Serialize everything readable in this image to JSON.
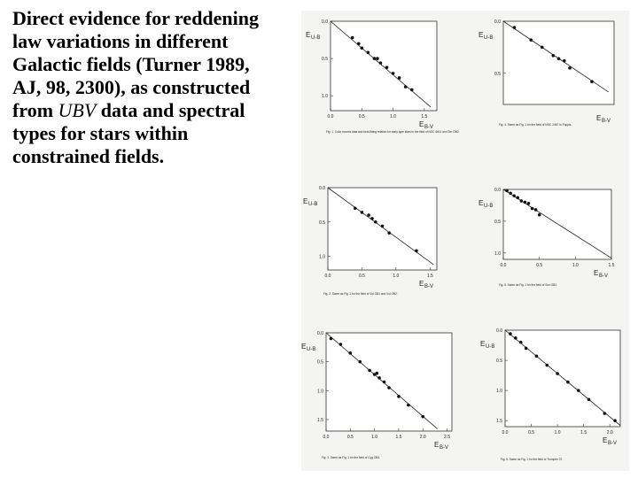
{
  "slide_text": {
    "before": "Direct evidence for reddening law variations in different Galactic fields (Turner 1989, AJ, 98, 2300), as constructed from ",
    "italic": "UBV",
    "after": " data and spectral types for stars within constrained fields."
  },
  "chart_data": [
    {
      "type": "scatter",
      "caption": "Fig. 1. Color excess data and best-fitting relation for early-type stars in the field of NGC 6611 and Ser OB2.",
      "xlabel": {
        "symbol": "E",
        "sub": "B-V"
      },
      "ylabel": {
        "symbol": "E",
        "sub": "U-B"
      },
      "xlim": [
        0,
        1.7
      ],
      "ylim": [
        0,
        1.2
      ],
      "xticks": [
        {
          "value": 0,
          "label": "0.0"
        },
        0.5,
        {
          "value": 1,
          "label": "1.0"
        },
        1.5
      ],
      "yticks": [
        {
          "value": 0,
          "label": "0.0"
        },
        0.5,
        {
          "value": 1,
          "label": "1.0"
        }
      ],
      "x": [
        0.35,
        0.45,
        0.5,
        0.6,
        0.7,
        0.8,
        0.9,
        1.0,
        1.1,
        1.2,
        1.3,
        0.75
      ],
      "y": [
        0.22,
        0.3,
        0.36,
        0.42,
        0.5,
        0.56,
        0.62,
        0.7,
        0.76,
        0.88,
        0.92,
        0.5
      ],
      "fit_x": [
        0,
        1.6
      ],
      "fit_y": [
        0,
        1.15
      ]
    },
    {
      "type": "scatter",
      "caption": "Fig. 4. Same as Fig. 1 for the field of NGC 2467 in Puppis.",
      "xlabel": {
        "symbol": "E",
        "sub": "B-V"
      },
      "ylabel": {
        "symbol": "E",
        "sub": "U-B"
      },
      "xlim": [
        0,
        1.0
      ],
      "ylim": [
        0,
        0.8
      ],
      "xticks": [],
      "yticks": [
        {
          "value": 0,
          "label": "0.0"
        },
        0.5
      ],
      "x": [
        0.1,
        0.25,
        0.35,
        0.45,
        0.55,
        0.6,
        0.8,
        0.5
      ],
      "y": [
        0.06,
        0.18,
        0.25,
        0.33,
        0.38,
        0.45,
        0.58,
        0.36
      ],
      "fit_x": [
        0,
        0.95
      ],
      "fit_y": [
        0,
        0.68
      ]
    },
    {
      "type": "scatter",
      "caption": "Fig. 2. Same as Fig. 1 for the field of Vul OB1 and Vul OB2.",
      "xlabel": {
        "symbol": "E",
        "sub": "B-V"
      },
      "ylabel": {
        "symbol": "E",
        "sub": "U-B"
      },
      "xlim": [
        0,
        1.6
      ],
      "ylim": [
        0,
        1.2
      ],
      "xticks": [
        {
          "value": 0,
          "label": "0.0"
        },
        0.5,
        {
          "value": 1,
          "label": "1.0"
        },
        1.5
      ],
      "yticks": [
        {
          "value": 0,
          "label": "0.0"
        },
        0.5,
        {
          "value": 1,
          "label": "1.0"
        }
      ],
      "x": [
        0.4,
        0.5,
        0.6,
        0.7,
        0.8,
        0.9,
        1.3,
        0.65
      ],
      "y": [
        0.3,
        0.36,
        0.4,
        0.5,
        0.56,
        0.66,
        0.92,
        0.45
      ],
      "fit_x": [
        0,
        1.55
      ],
      "fit_y": [
        0,
        1.12
      ]
    },
    {
      "type": "scatter",
      "caption": "Fig. 5. Same as Fig. 1 for the field of Sco OB2.",
      "xlabel": {
        "symbol": "E",
        "sub": "B-V"
      },
      "ylabel": {
        "symbol": "E",
        "sub": "U-B"
      },
      "xlim": [
        0,
        1.5
      ],
      "ylim": [
        0,
        1.1
      ],
      "xticks": [
        {
          "value": 0,
          "label": "0.0"
        },
        0.5,
        {
          "value": 1,
          "label": "1.0"
        },
        1.5
      ],
      "yticks": [
        {
          "value": 0,
          "label": "0.0"
        },
        0.5,
        {
          "value": 1,
          "label": "1.0"
        }
      ],
      "x": [
        0.05,
        0.1,
        0.15,
        0.2,
        0.25,
        0.3,
        0.4,
        0.45,
        0.5,
        0.35
      ],
      "y": [
        0.02,
        0.06,
        0.1,
        0.13,
        0.18,
        0.2,
        0.3,
        0.32,
        0.4,
        0.22
      ],
      "fit_x": [
        0,
        1.5
      ],
      "fit_y": [
        0,
        1.08
      ]
    },
    {
      "type": "scatter",
      "caption": "Fig. 3. Same as Fig. 1 for the field of Cyg OB3.",
      "xlabel": {
        "symbol": "E",
        "sub": "B-V"
      },
      "ylabel": {
        "symbol": "E",
        "sub": "U-B"
      },
      "xlim": [
        0,
        2.6
      ],
      "ylim": [
        0,
        1.7
      ],
      "xticks": [
        {
          "value": 0,
          "label": "0.0"
        },
        0.5,
        {
          "value": 1,
          "label": "1.0"
        },
        1.5,
        {
          "value": 2,
          "label": "2.0"
        },
        2.5
      ],
      "yticks": [
        {
          "value": 0,
          "label": "0.0"
        },
        0.5,
        {
          "value": 1,
          "label": "1.0"
        },
        1.5
      ],
      "x": [
        0.1,
        0.3,
        0.5,
        0.7,
        0.9,
        1.0,
        1.1,
        1.2,
        1.3,
        1.5,
        1.7,
        2.0,
        1.05
      ],
      "y": [
        0.1,
        0.2,
        0.35,
        0.5,
        0.65,
        0.72,
        0.78,
        0.85,
        0.95,
        1.1,
        1.25,
        1.45,
        0.7
      ],
      "fit_x": [
        0,
        2.3
      ],
      "fit_y": [
        0,
        1.66
      ]
    },
    {
      "type": "scatter",
      "caption": "Fig. 6. Same as Fig. 1 for the field of Trumpler 37.",
      "xlabel": {
        "symbol": "E",
        "sub": "B-V"
      },
      "ylabel": {
        "symbol": "E",
        "sub": "U-B"
      },
      "xlim": [
        0,
        2.2
      ],
      "ylim": [
        0,
        1.6
      ],
      "xticks": [
        {
          "value": 0,
          "label": "0.0"
        },
        0.5,
        {
          "value": 1,
          "label": "1.0"
        },
        1.5,
        {
          "value": 2,
          "label": "2.0"
        }
      ],
      "yticks": [
        {
          "value": 0,
          "label": "0.0"
        },
        0.5,
        {
          "value": 1,
          "label": "1.0"
        },
        1.5
      ],
      "x": [
        0.1,
        0.2,
        0.3,
        0.4,
        0.6,
        0.8,
        1.0,
        1.2,
        1.4,
        1.6,
        1.9,
        2.1
      ],
      "y": [
        0.06,
        0.13,
        0.2,
        0.3,
        0.43,
        0.58,
        0.72,
        0.86,
        1.0,
        1.15,
        1.38,
        1.5
      ],
      "fit_x": [
        0,
        2.2
      ],
      "fit_y": [
        0,
        1.58
      ]
    }
  ]
}
